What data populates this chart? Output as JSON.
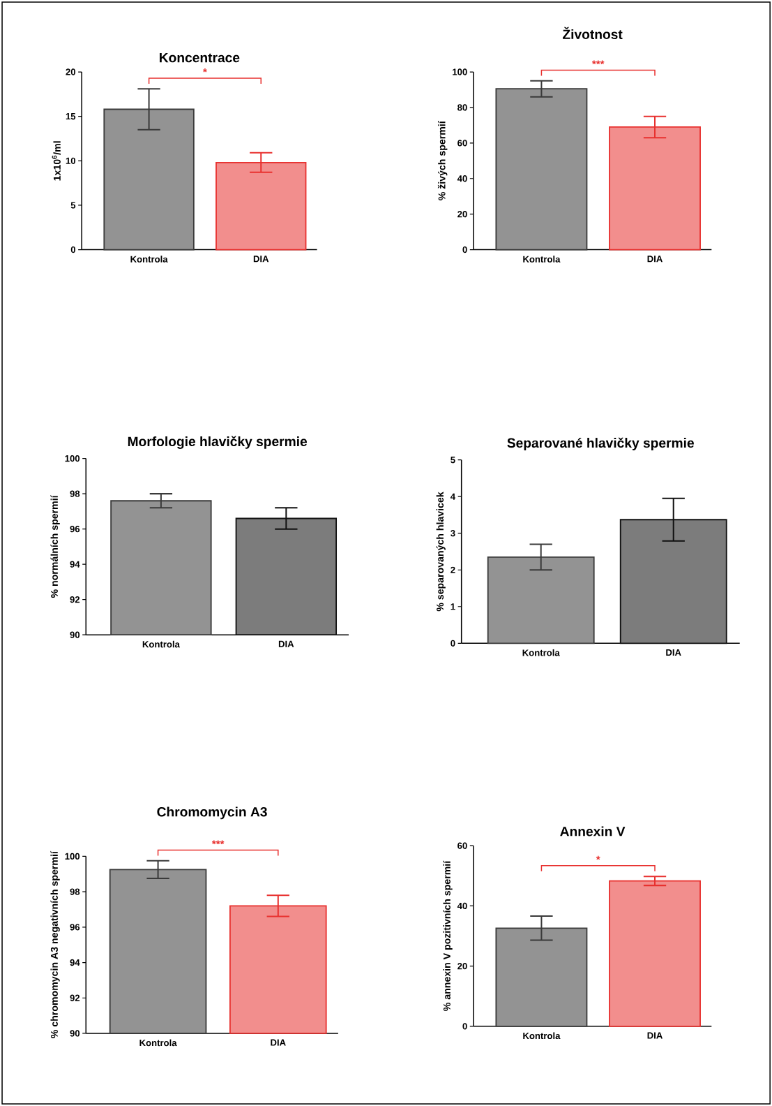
{
  "chart_data": [
    {
      "type": "bar",
      "title": "Koncentrace",
      "ylabel": "1x10$^{6}$/ml",
      "categories": [
        "Kontrola",
        "DIA"
      ],
      "values": [
        15.8,
        9.8
      ],
      "errors": [
        2.3,
        1.1
      ],
      "colors": [
        "#3a3a3a",
        "#e8312f"
      ],
      "ylim": [
        0,
        20
      ],
      "yticks": [
        0,
        5,
        10,
        15,
        20
      ],
      "annotations": [
        "*"
      ]
    },
    {
      "type": "bar",
      "title": "Životnost",
      "ylabel": "% živých spermií",
      "categories": [
        "Kontrola",
        "DIA"
      ],
      "values": [
        90.5,
        69
      ],
      "errors": [
        4.5,
        6
      ],
      "colors": [
        "#3a3a3a",
        "#e8312f"
      ],
      "ylim": [
        0,
        100
      ],
      "yticks": [
        0,
        20,
        40,
        60,
        80,
        100
      ],
      "annotations": [
        "***"
      ]
    },
    {
      "type": "bar",
      "title": "Morfologie hlavičky spermie",
      "ylabel": "% normálních spermií",
      "categories": [
        "Kontrola",
        "DIA"
      ],
      "values": [
        97.6,
        96.6
      ],
      "errors": [
        0.4,
        0.6
      ],
      "colors": [
        "#3a3a3a",
        "#111111"
      ],
      "ylim": [
        90,
        100
      ],
      "yticks": [
        90,
        92,
        94,
        96,
        98,
        100
      ]
    },
    {
      "type": "bar",
      "title": "Separované hlavičky spermie",
      "ylabel": "% separovaných hlavicek",
      "categories": [
        "Kontrola",
        "DIA"
      ],
      "values": [
        2.35,
        3.37
      ],
      "errors": [
        0.35,
        0.58
      ],
      "colors": [
        "#3a3a3a",
        "#111111"
      ],
      "ylim": [
        0,
        5
      ],
      "yticks": [
        0,
        1,
        2,
        3,
        4,
        5
      ]
    },
    {
      "type": "bar",
      "title": "Chromomycin A3",
      "ylabel": "% chromomycin A3 negativních spermií",
      "categories": [
        "Kontrola",
        "DIA"
      ],
      "values": [
        99.25,
        97.2
      ],
      "errors": [
        0.5,
        0.6
      ],
      "colors": [
        "#3a3a3a",
        "#e8312f"
      ],
      "ylim": [
        90,
        100
      ],
      "yticks": [
        90,
        92,
        94,
        96,
        98,
        100
      ],
      "annotations": [
        "***"
      ]
    },
    {
      "type": "bar",
      "title": "Annexin V",
      "ylabel": "% annexin V pozitivních spermií",
      "categories": [
        "Kontrola",
        "DIA"
      ],
      "values": [
        32.6,
        48.3
      ],
      "errors": [
        4,
        1.5
      ],
      "colors": [
        "#3a3a3a",
        "#e8312f"
      ],
      "ylim": [
        0,
        60
      ],
      "yticks": [
        0,
        20,
        40,
        60
      ],
      "annotations": [
        "*"
      ]
    }
  ]
}
